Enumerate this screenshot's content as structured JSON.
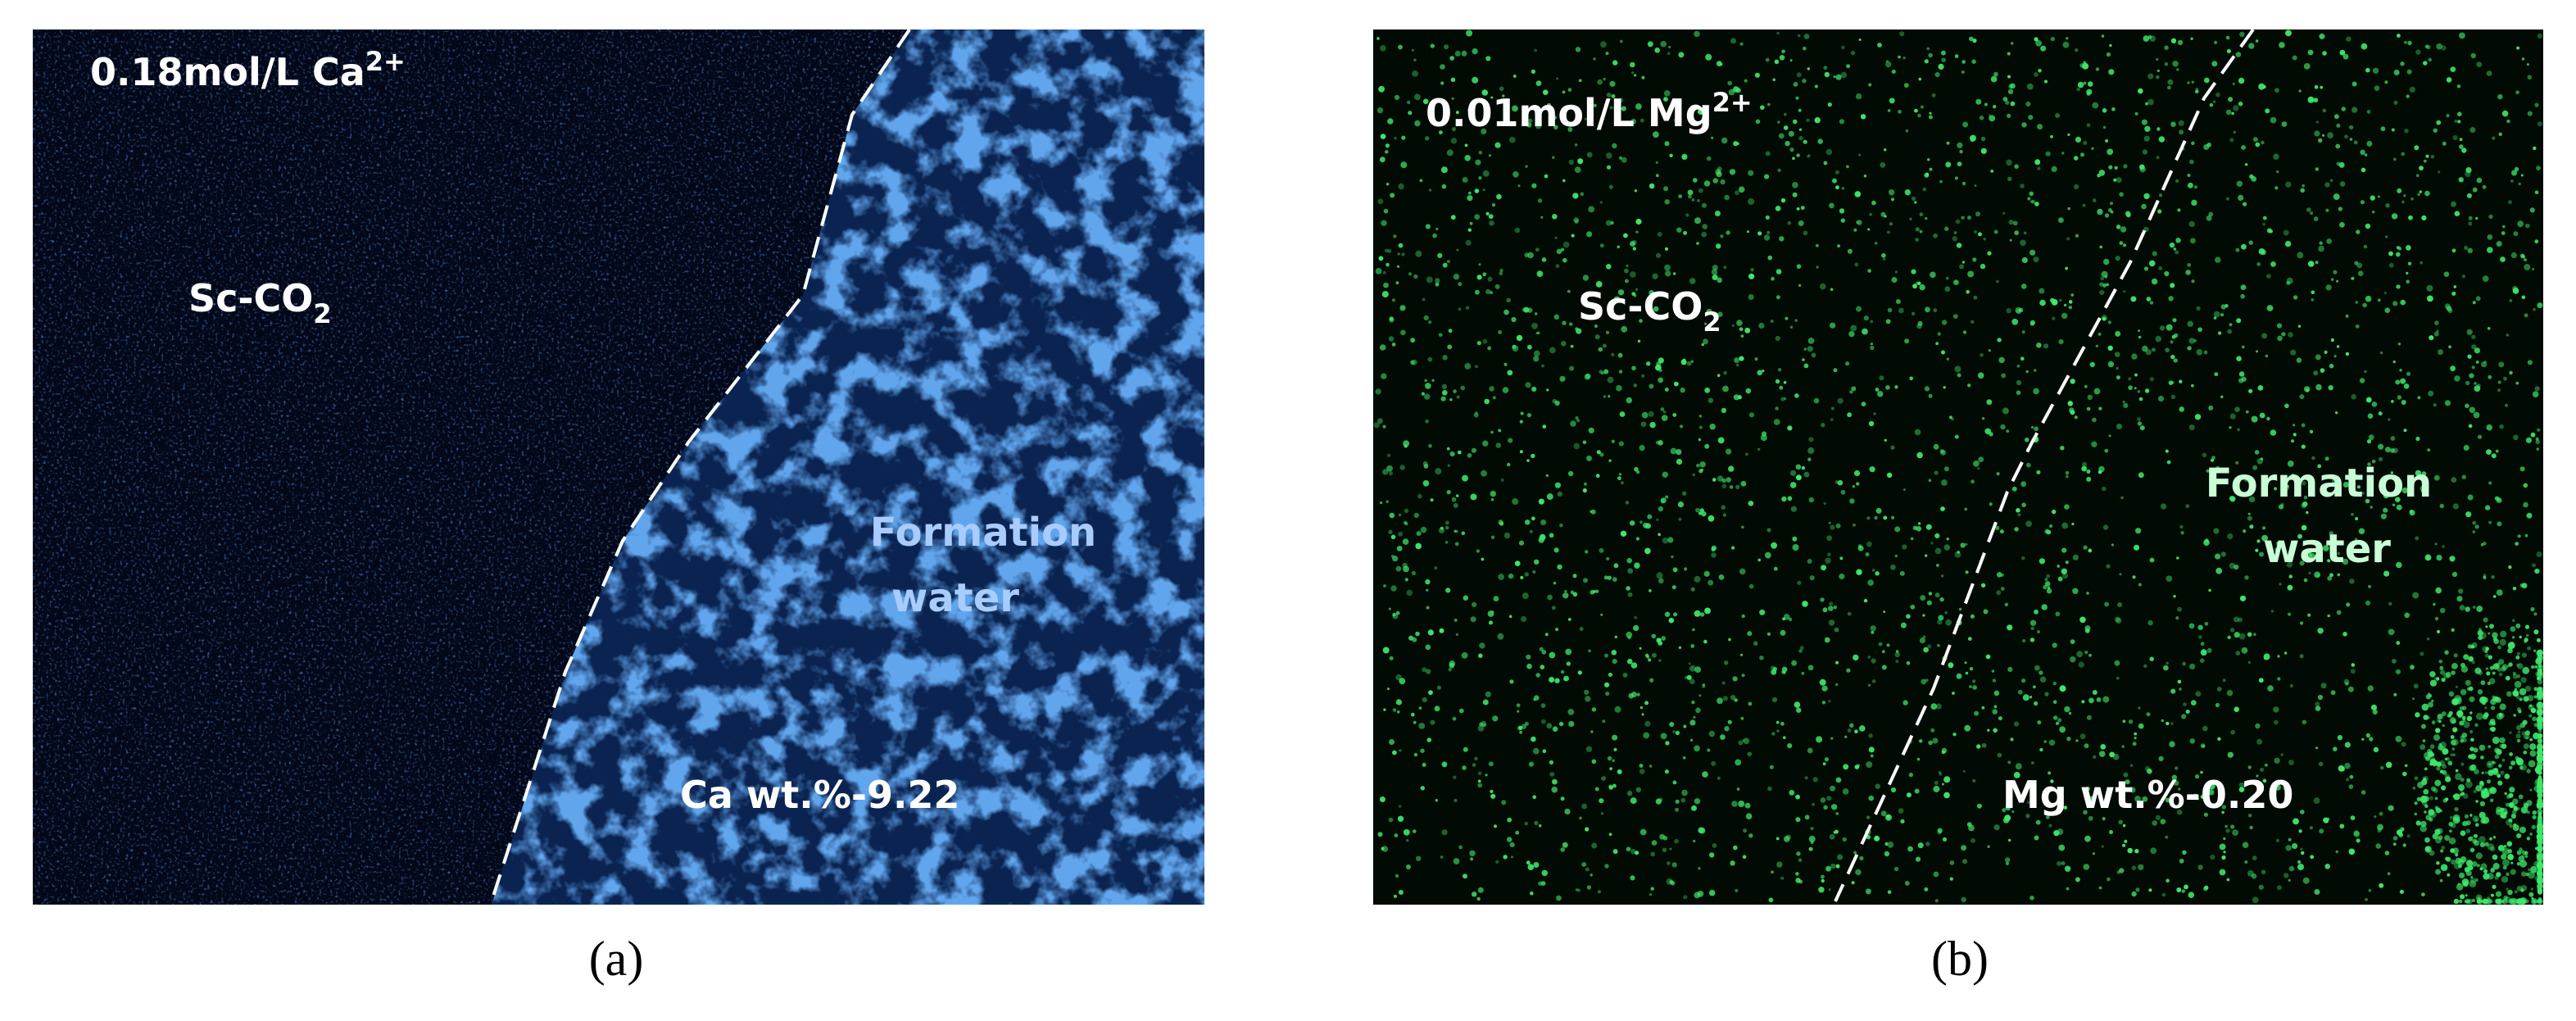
{
  "panels": [
    {
      "label": "(a)",
      "title": {
        "text": "0.18mol/L Ca",
        "sup": "2+"
      },
      "left_region": {
        "text": "Sc-CO",
        "sub": "2"
      },
      "right_region": [
        "Formation",
        "water"
      ],
      "content": "Ca wt.%-9.22"
    },
    {
      "label": "(b)",
      "title": {
        "text": "0.01mol/L Mg",
        "sup": "2+"
      },
      "left_region": {
        "text": "Sc-CO",
        "sub": "2"
      },
      "right_region": [
        "Formation",
        "water"
      ],
      "content": "Mg wt.%-0.20"
    }
  ]
}
